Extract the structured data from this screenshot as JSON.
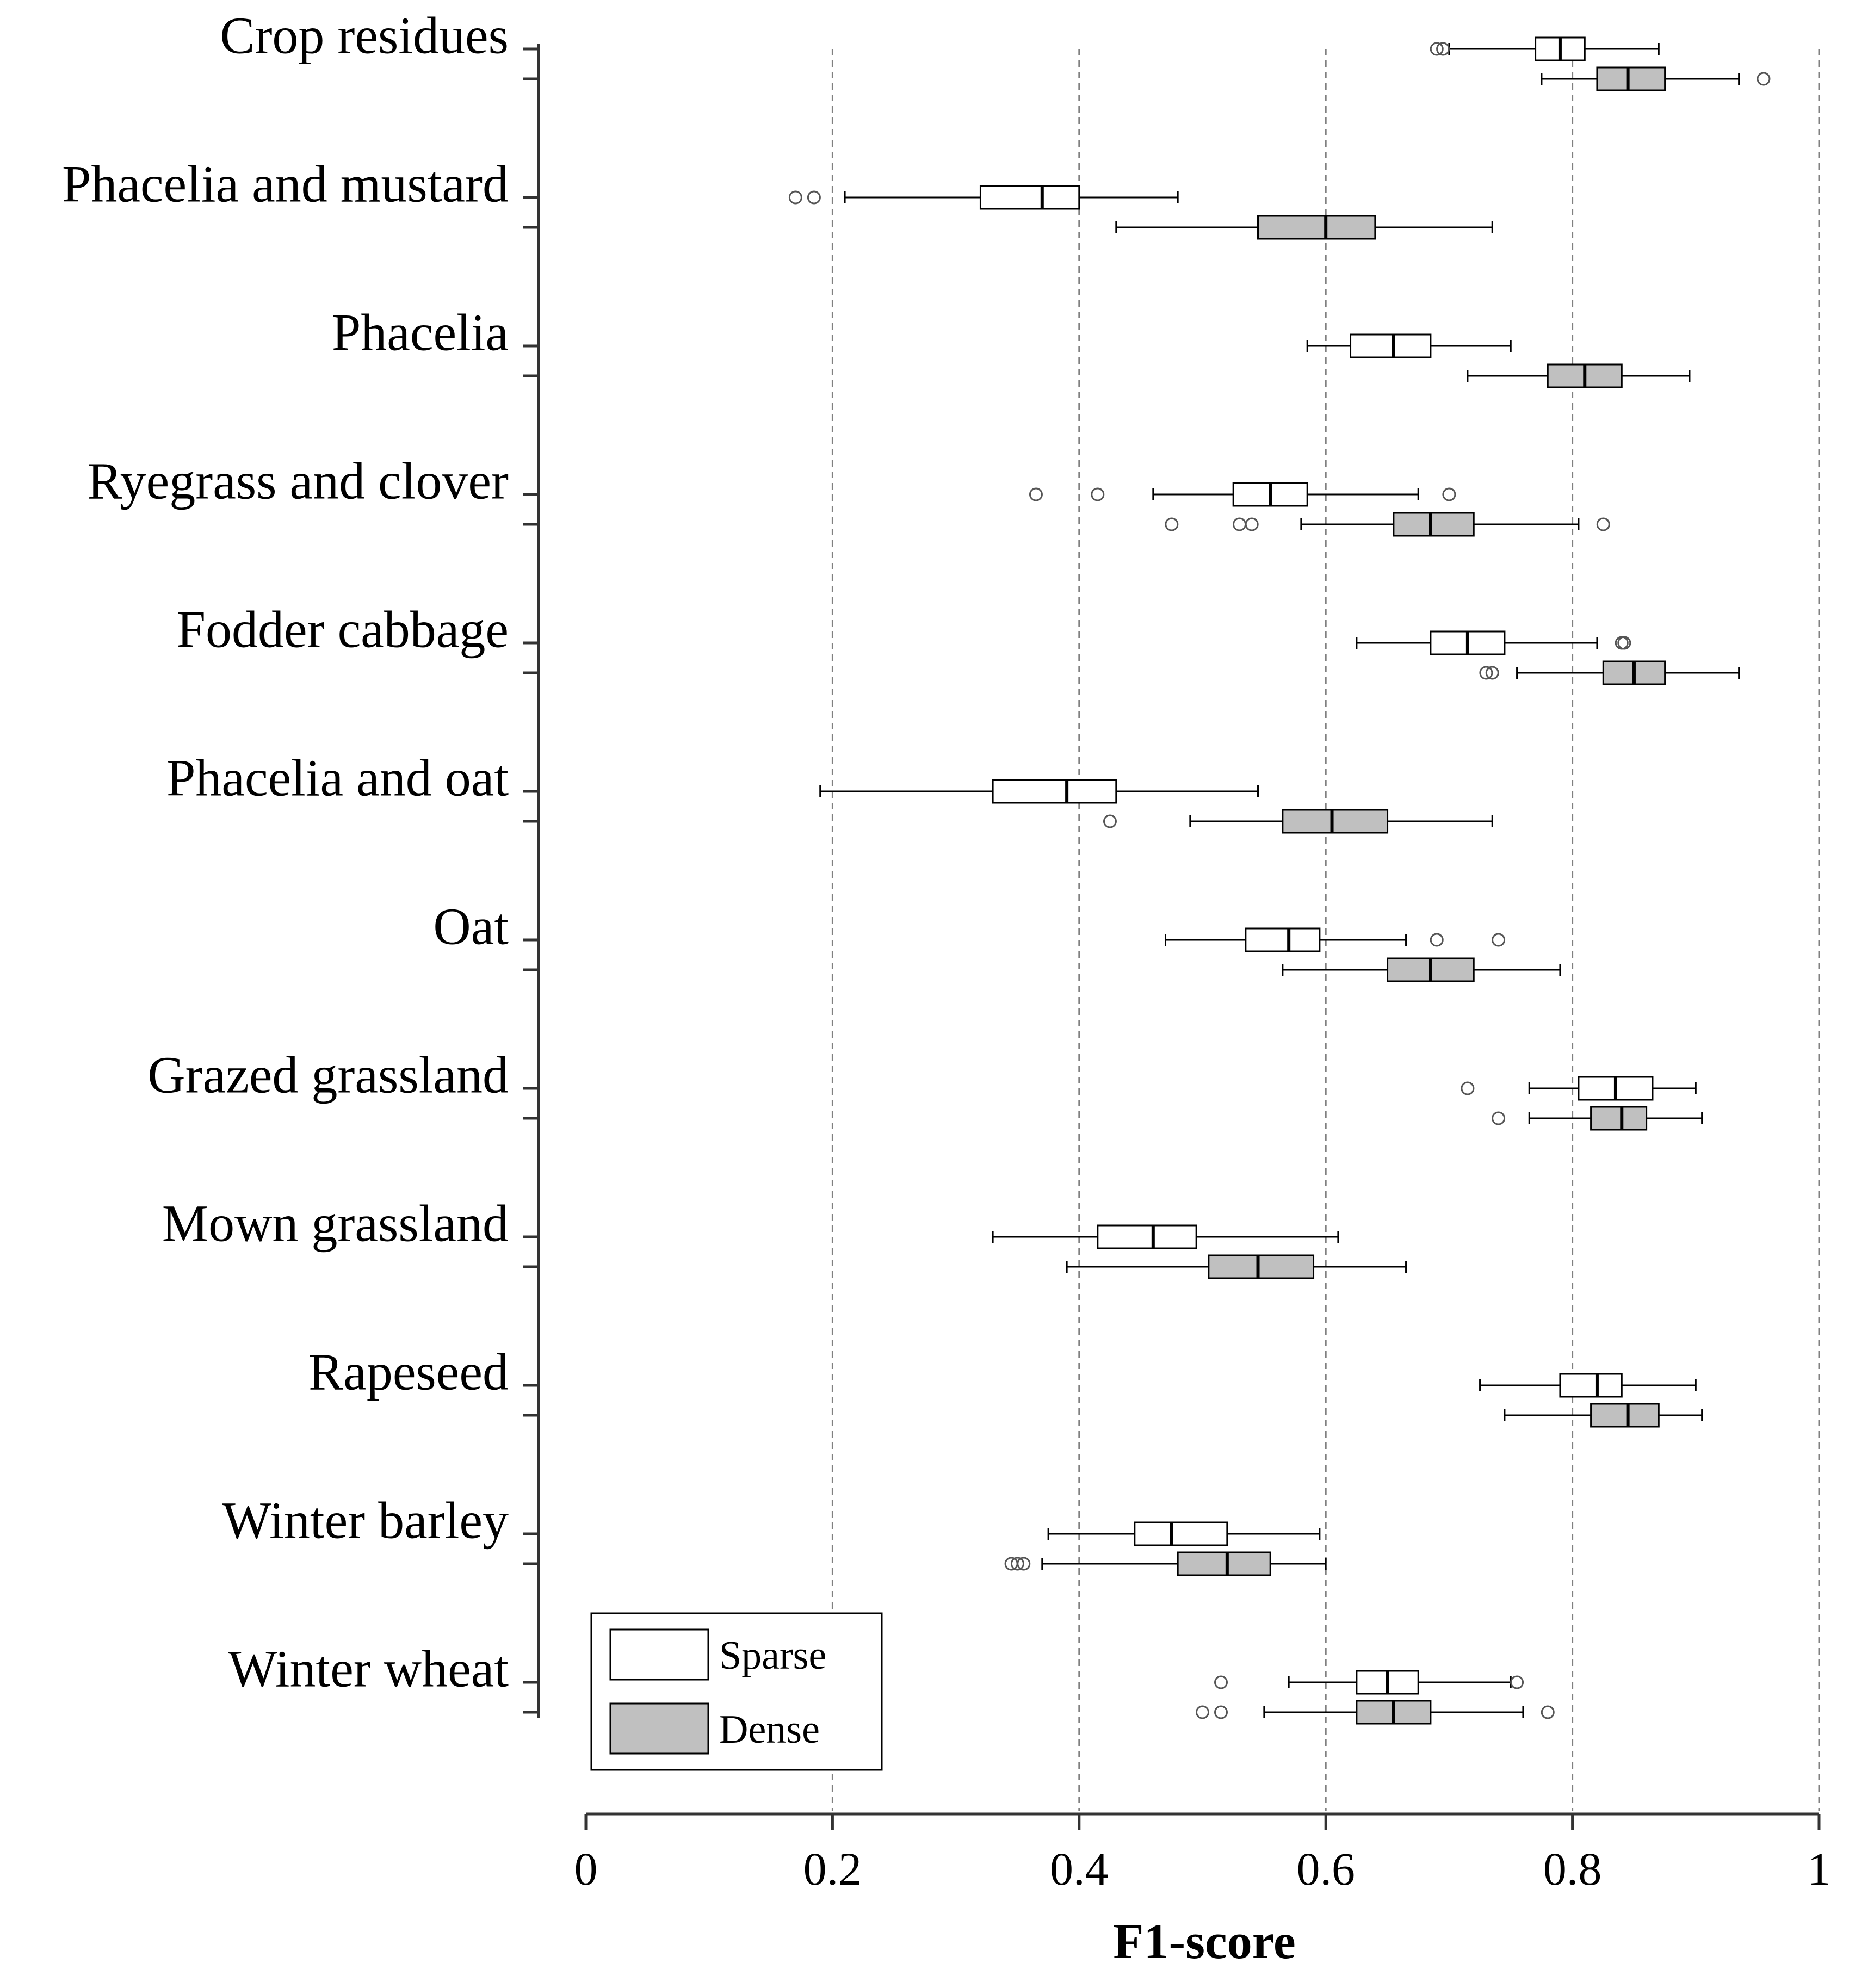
{
  "chart_data": {
    "type": "boxplot",
    "orientation": "horizontal",
    "xlabel": "F1-score",
    "xlim": [
      0,
      1
    ],
    "xticks": [
      0,
      0.2,
      0.4,
      0.6,
      0.8,
      1
    ],
    "xtick_labels": [
      "0",
      "0.2",
      "0.4",
      "0.6",
      "0.8",
      "1"
    ],
    "grid": "vertical dashed",
    "legend": {
      "position": "bottom-left",
      "entries": [
        {
          "name": "Sparse",
          "color": "#ffffff"
        },
        {
          "name": "Dense",
          "color": "#c0c0c0"
        }
      ]
    },
    "colors": {
      "sparse": "#ffffff",
      "dense": "#c0c0c0",
      "stroke": "#000000",
      "grid": "#808080",
      "outlier": "#555555"
    },
    "categories": [
      {
        "name": "Crop residues",
        "sparse": {
          "whisker_low": 0.7,
          "q1": 0.77,
          "median": 0.79,
          "q3": 0.81,
          "whisker_high": 0.87,
          "outliers": [
            0.69,
            0.695
          ]
        },
        "dense": {
          "whisker_low": 0.775,
          "q1": 0.82,
          "median": 0.845,
          "q3": 0.875,
          "whisker_high": 0.935,
          "outliers": [
            0.955
          ]
        }
      },
      {
        "name": "Phacelia and mustard",
        "sparse": {
          "whisker_low": 0.21,
          "q1": 0.32,
          "median": 0.37,
          "q3": 0.4,
          "whisker_high": 0.48,
          "outliers": [
            0.17,
            0.185
          ]
        },
        "dense": {
          "whisker_low": 0.43,
          "q1": 0.545,
          "median": 0.6,
          "q3": 0.64,
          "whisker_high": 0.735,
          "outliers": []
        }
      },
      {
        "name": "Phacelia",
        "sparse": {
          "whisker_low": 0.585,
          "q1": 0.62,
          "median": 0.655,
          "q3": 0.685,
          "whisker_high": 0.75,
          "outliers": []
        },
        "dense": {
          "whisker_low": 0.715,
          "q1": 0.78,
          "median": 0.81,
          "q3": 0.84,
          "whisker_high": 0.895,
          "outliers": []
        }
      },
      {
        "name": "Ryegrass and clover",
        "sparse": {
          "whisker_low": 0.46,
          "q1": 0.525,
          "median": 0.555,
          "q3": 0.585,
          "whisker_high": 0.675,
          "outliers": [
            0.365,
            0.415,
            0.7
          ]
        },
        "dense": {
          "whisker_low": 0.58,
          "q1": 0.655,
          "median": 0.685,
          "q3": 0.72,
          "whisker_high": 0.805,
          "outliers": [
            0.475,
            0.53,
            0.54,
            0.825
          ]
        }
      },
      {
        "name": "Fodder cabbage",
        "sparse": {
          "whisker_low": 0.625,
          "q1": 0.685,
          "median": 0.715,
          "q3": 0.745,
          "whisker_high": 0.82,
          "outliers": [
            0.84,
            0.842
          ]
        },
        "dense": {
          "whisker_low": 0.755,
          "q1": 0.825,
          "median": 0.85,
          "q3": 0.875,
          "whisker_high": 0.935,
          "outliers": [
            0.73,
            0.735
          ]
        }
      },
      {
        "name": "Phacelia and oat",
        "sparse": {
          "whisker_low": 0.19,
          "q1": 0.33,
          "median": 0.39,
          "q3": 0.43,
          "whisker_high": 0.545,
          "outliers": []
        },
        "dense": {
          "whisker_low": 0.49,
          "q1": 0.565,
          "median": 0.605,
          "q3": 0.65,
          "whisker_high": 0.735,
          "outliers": [
            0.425
          ]
        }
      },
      {
        "name": "Oat",
        "sparse": {
          "whisker_low": 0.47,
          "q1": 0.535,
          "median": 0.57,
          "q3": 0.595,
          "whisker_high": 0.665,
          "outliers": [
            0.69,
            0.74
          ]
        },
        "dense": {
          "whisker_low": 0.565,
          "q1": 0.65,
          "median": 0.685,
          "q3": 0.72,
          "whisker_high": 0.79,
          "outliers": []
        }
      },
      {
        "name": "Grazed grassland",
        "sparse": {
          "whisker_low": 0.765,
          "q1": 0.805,
          "median": 0.835,
          "q3": 0.865,
          "whisker_high": 0.9,
          "outliers": [
            0.715
          ]
        },
        "dense": {
          "whisker_low": 0.765,
          "q1": 0.815,
          "median": 0.84,
          "q3": 0.86,
          "whisker_high": 0.905,
          "outliers": [
            0.74
          ]
        }
      },
      {
        "name": "Mown grassland",
        "sparse": {
          "whisker_low": 0.33,
          "q1": 0.415,
          "median": 0.46,
          "q3": 0.495,
          "whisker_high": 0.61,
          "outliers": []
        },
        "dense": {
          "whisker_low": 0.39,
          "q1": 0.505,
          "median": 0.545,
          "q3": 0.59,
          "whisker_high": 0.665,
          "outliers": []
        }
      },
      {
        "name": "Rapeseed",
        "sparse": {
          "whisker_low": 0.725,
          "q1": 0.79,
          "median": 0.82,
          "q3": 0.84,
          "whisker_high": 0.9,
          "outliers": []
        },
        "dense": {
          "whisker_low": 0.745,
          "q1": 0.815,
          "median": 0.845,
          "q3": 0.87,
          "whisker_high": 0.905,
          "outliers": []
        }
      },
      {
        "name": "Winter barley",
        "sparse": {
          "whisker_low": 0.375,
          "q1": 0.445,
          "median": 0.475,
          "q3": 0.52,
          "whisker_high": 0.595,
          "outliers": []
        },
        "dense": {
          "whisker_low": 0.37,
          "q1": 0.48,
          "median": 0.52,
          "q3": 0.555,
          "whisker_high": 0.6,
          "outliers": [
            0.345,
            0.35,
            0.355
          ]
        }
      },
      {
        "name": "Winter wheat",
        "sparse": {
          "whisker_low": 0.57,
          "q1": 0.625,
          "median": 0.65,
          "q3": 0.675,
          "whisker_high": 0.75,
          "outliers": [
            0.515,
            0.755
          ]
        },
        "dense": {
          "whisker_low": 0.55,
          "q1": 0.625,
          "median": 0.655,
          "q3": 0.685,
          "whisker_high": 0.76,
          "outliers": [
            0.5,
            0.515,
            0.78
          ]
        }
      }
    ]
  }
}
